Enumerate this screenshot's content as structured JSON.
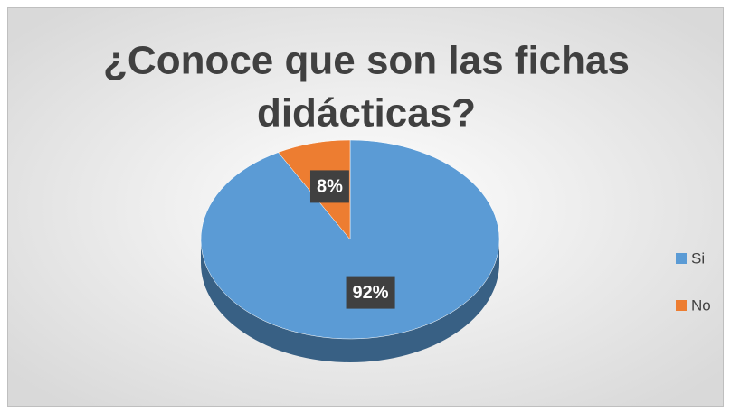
{
  "chart_data": {
    "type": "pie",
    "title_lines": [
      "¿Conoce que son las fichas",
      "didácticas?"
    ],
    "categories": [
      "Si",
      "No"
    ],
    "values": [
      92,
      8
    ],
    "value_labels": [
      "92%",
      "8%"
    ],
    "colors": [
      "#5b9bd5",
      "#ed7d31"
    ],
    "legend": "right"
  }
}
